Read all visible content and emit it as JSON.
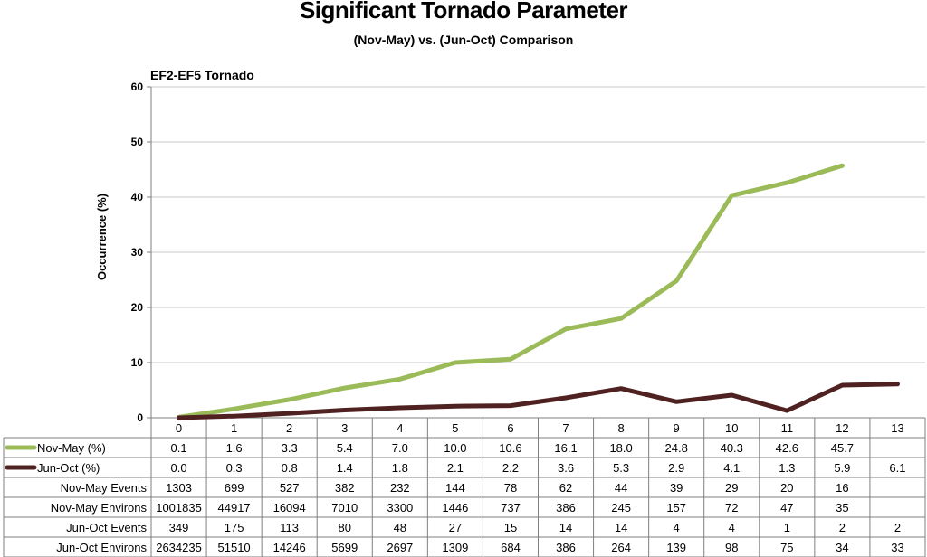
{
  "title": "Significant Tornado Parameter",
  "subtitle": "(Nov-May) vs. (Jun-Oct) Comparison",
  "chart_data": {
    "type": "line",
    "chart_title": "EF2-EF5 Tornado",
    "ylabel": "Occurrence (%)",
    "xlabel": "",
    "ylim": [
      0,
      60
    ],
    "yticks": [
      0,
      10,
      20,
      30,
      40,
      50,
      60
    ],
    "grid": true,
    "x": [
      "0",
      "1",
      "2",
      "3",
      "4",
      "5",
      "6",
      "7",
      "8",
      "9",
      "10",
      "11",
      "12",
      "13"
    ],
    "series": [
      {
        "name": "Nov-May (%)",
        "color": "#9bbb59",
        "values": [
          0.1,
          1.6,
          3.3,
          5.4,
          7.0,
          10.0,
          10.6,
          16.1,
          18.0,
          24.8,
          40.3,
          42.6,
          45.7,
          null
        ],
        "labels": [
          "0.1",
          "1.6",
          "3.3",
          "5.4",
          "7.0",
          "10.0",
          "10.6",
          "16.1",
          "18.0",
          "24.8",
          "40.3",
          "42.6",
          "45.7",
          ""
        ]
      },
      {
        "name": "Jun-Oct (%)",
        "color": "#4f2120",
        "values": [
          0.0,
          0.3,
          0.8,
          1.4,
          1.8,
          2.1,
          2.2,
          3.6,
          5.3,
          2.9,
          4.1,
          1.3,
          5.9,
          6.1
        ],
        "labels": [
          "0.0",
          "0.3",
          "0.8",
          "1.4",
          "1.8",
          "2.1",
          "2.2",
          "3.6",
          "5.3",
          "2.9",
          "4.1",
          "1.3",
          "5.9",
          "6.1"
        ]
      }
    ],
    "table_rows": [
      {
        "name": "Nov-May Events",
        "values": [
          "1303",
          "699",
          "527",
          "382",
          "232",
          "144",
          "78",
          "62",
          "44",
          "39",
          "29",
          "20",
          "16",
          ""
        ]
      },
      {
        "name": "Nov-May Environs",
        "values": [
          "1001835",
          "44917",
          "16094",
          "7010",
          "3300",
          "1446",
          "737",
          "386",
          "245",
          "157",
          "72",
          "47",
          "35",
          ""
        ]
      },
      {
        "name": "Jun-Oct Events",
        "values": [
          "349",
          "175",
          "113",
          "80",
          "48",
          "27",
          "15",
          "14",
          "14",
          "4",
          "4",
          "1",
          "2",
          "2"
        ]
      },
      {
        "name": "Jun-Oct Environs",
        "values": [
          "2634235",
          "51510",
          "14246",
          "5699",
          "2697",
          "1309",
          "684",
          "386",
          "264",
          "139",
          "98",
          "75",
          "34",
          "33"
        ]
      }
    ]
  }
}
